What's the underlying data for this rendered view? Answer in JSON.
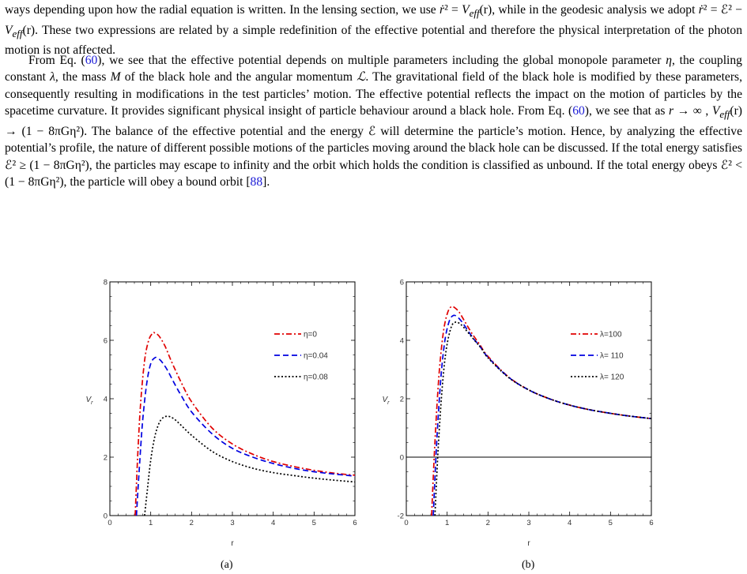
{
  "text": {
    "p1": [
      "ways depending upon how the radial equation is written. In the lensing section, we use ",
      "ṙ",
      "² = ",
      "V",
      "eff",
      "(r), while in the geodesic analysis we adopt ",
      "ṙ",
      "² = ℰ² − ",
      "V",
      "eff",
      "(r). These two expressions are related by a simple redefinition of the effective potential and therefore the physical interpretation of the photon motion is not affected."
    ],
    "p2": [
      "From Eq. (",
      "60",
      "), we see that the effective potential depends on multiple parameters including the global monopole parameter ",
      "η",
      ", the coupling constant ",
      "λ",
      ", the mass ",
      "M",
      " of the black hole and the angular momentum ",
      "ℒ",
      ". The gravitational field of the black hole is modified by these parameters, consequently resulting in modifications in the test particles’ motion. The effective potential reflects the impact on the motion of particles by the spacetime curvature. It provides significant physical insight of particle behaviour around a black hole. From Eq. (",
      "60",
      "), we see that as ",
      "r",
      " → ∞ , ",
      "V",
      "eff",
      "(r) → (1 − 8πGη²). The balance of the effective potential and the energy ℰ will determine the particle’s motion. Hence, by analyzing the effective potential’s profile, the nature of different possible motions of the particles moving around the black hole can be discussed. If the total energy satisfies ℰ² ≥ (1 − 8πGη²), the particles may escape to infinity and the orbit which holds the condition is classified as unbound. If the total energy obeys ℰ² < (1 − 8πGη²), the particle will obey a bound orbit [",
      "88",
      "]."
    ]
  },
  "chart_data": [
    {
      "type": "line",
      "caption": "(a)",
      "xlabel": "r",
      "ylabel": "V r",
      "xlim": [
        0,
        6
      ],
      "ylim": [
        0,
        8
      ],
      "xticks": [
        "0",
        "1",
        "2",
        "3",
        "4",
        "5",
        "6"
      ],
      "yticks": [
        "0",
        "2",
        "4",
        "6",
        "8"
      ],
      "legend_position": "top-right",
      "series": [
        {
          "name": "η=0",
          "color": "#e00000",
          "dash": "dash-dot",
          "x": [
            0.62,
            0.68,
            0.75,
            0.85,
            0.95,
            1.05,
            1.1,
            1.2,
            1.35,
            1.5,
            1.75,
            2.0,
            2.5,
            3.0,
            3.5,
            4.0,
            4.5,
            5.0,
            5.5,
            6.0
          ],
          "y": [
            0,
            2.0,
            3.8,
            5.3,
            6.0,
            6.25,
            6.25,
            6.15,
            5.8,
            5.3,
            4.55,
            3.9,
            3.0,
            2.45,
            2.1,
            1.85,
            1.68,
            1.55,
            1.45,
            1.38
          ]
        },
        {
          "name": "η=0.04",
          "color": "#0000e0",
          "dash": "dash",
          "x": [
            0.65,
            0.72,
            0.8,
            0.9,
            1.0,
            1.1,
            1.15,
            1.25,
            1.4,
            1.55,
            1.75,
            2.0,
            2.5,
            3.0,
            3.5,
            4.0,
            4.5,
            5.0,
            5.5,
            6.0
          ],
          "y": [
            0,
            1.6,
            3.2,
            4.5,
            5.2,
            5.4,
            5.4,
            5.3,
            5.0,
            4.6,
            4.1,
            3.55,
            2.8,
            2.3,
            2.0,
            1.78,
            1.62,
            1.5,
            1.42,
            1.35
          ]
        },
        {
          "name": "η=0.08",
          "color": "#000000",
          "dash": "dot",
          "x": [
            0.85,
            0.92,
            1.0,
            1.1,
            1.2,
            1.3,
            1.42,
            1.55,
            1.7,
            2.0,
            2.5,
            3.0,
            3.5,
            4.0,
            4.5,
            5.0,
            5.5,
            6.0
          ],
          "y": [
            0,
            0.9,
            1.9,
            2.7,
            3.15,
            3.35,
            3.4,
            3.33,
            3.15,
            2.75,
            2.2,
            1.85,
            1.62,
            1.47,
            1.37,
            1.28,
            1.21,
            1.15
          ]
        }
      ]
    },
    {
      "type": "line",
      "caption": "(b)",
      "xlabel": "r",
      "ylabel": "V r",
      "xlim": [
        0,
        6
      ],
      "ylim": [
        -2,
        6
      ],
      "xticks": [
        "0",
        "1",
        "2",
        "3",
        "4",
        "5",
        "6"
      ],
      "yticks": [
        "-2",
        "0",
        "2",
        "4",
        "6"
      ],
      "zero_line": true,
      "legend_position": "top-right",
      "series": [
        {
          "name": "λ=100",
          "color": "#e00000",
          "dash": "dash-dot",
          "x": [
            0.62,
            0.7,
            0.8,
            0.9,
            1.0,
            1.1,
            1.2,
            1.3,
            1.45,
            1.6,
            1.8,
            2.0,
            2.5,
            3.0,
            3.5,
            4.0,
            4.5,
            5.0,
            5.5,
            6.0
          ],
          "y": [
            -2,
            0.5,
            2.8,
            4.2,
            4.9,
            5.15,
            5.1,
            4.95,
            4.6,
            4.25,
            3.85,
            3.45,
            2.75,
            2.3,
            2.0,
            1.78,
            1.62,
            1.5,
            1.4,
            1.32
          ]
        },
        {
          "name": "λ= 110",
          "color": "#0000e0",
          "dash": "dash",
          "x": [
            0.66,
            0.74,
            0.84,
            0.94,
            1.05,
            1.15,
            1.25,
            1.35,
            1.5,
            1.65,
            1.8,
            2.0,
            2.5,
            3.0,
            3.5,
            4.0,
            4.5,
            5.0,
            5.5,
            6.0
          ],
          "y": [
            -2,
            0.4,
            2.6,
            3.95,
            4.65,
            4.85,
            4.8,
            4.65,
            4.35,
            4.05,
            3.8,
            3.42,
            2.74,
            2.3,
            2.0,
            1.78,
            1.62,
            1.5,
            1.4,
            1.32
          ]
        },
        {
          "name": "λ= 120",
          "color": "#000000",
          "dash": "dot",
          "x": [
            0.7,
            0.78,
            0.88,
            0.98,
            1.1,
            1.2,
            1.3,
            1.4,
            1.55,
            1.7,
            1.85,
            2.0,
            2.5,
            3.0,
            3.5,
            4.0,
            4.5,
            5.0,
            5.5,
            6.0
          ],
          "y": [
            -2,
            0.3,
            2.4,
            3.7,
            4.45,
            4.62,
            4.58,
            4.45,
            4.2,
            3.95,
            3.7,
            3.4,
            2.73,
            2.3,
            2.0,
            1.78,
            1.62,
            1.5,
            1.4,
            1.32
          ]
        }
      ]
    }
  ]
}
